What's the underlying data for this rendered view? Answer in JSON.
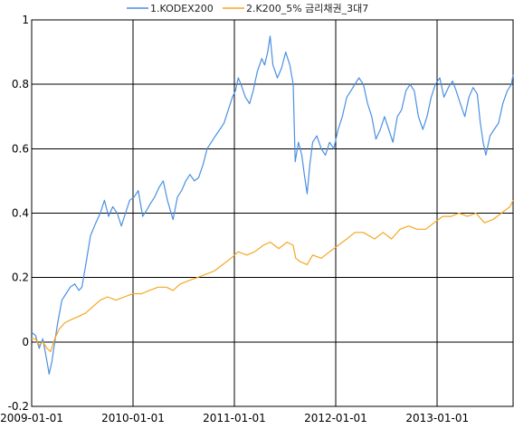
{
  "chart_data": {
    "type": "line",
    "title": "",
    "xlabel": "",
    "ylabel": "",
    "legend_position": "top-center",
    "grid": true,
    "x_ticks": [
      "2009-01-01",
      "2010-01-01",
      "2011-01-01",
      "2012-01-01",
      "2013-01-01"
    ],
    "y_ticks": [
      -0.2,
      0,
      0.2,
      0.4,
      0.6,
      0.8,
      1
    ],
    "y_tick_labels": [
      "-0.2",
      "0",
      "0.2",
      "0.4",
      "0.6",
      "0.8",
      "1"
    ],
    "xlim": [
      "2009-01-01",
      "2013-10-01"
    ],
    "ylim": [
      -0.2,
      1.0
    ],
    "series": [
      {
        "name": "1.KODEX200",
        "color": "#4a90e2",
        "points": [
          [
            "2009-01-01",
            0.03
          ],
          [
            "2009-01-15",
            0.02
          ],
          [
            "2009-01-28",
            -0.02
          ],
          [
            "2009-02-10",
            0.01
          ],
          [
            "2009-02-25",
            -0.06
          ],
          [
            "2009-03-05",
            -0.1
          ],
          [
            "2009-03-15",
            -0.06
          ],
          [
            "2009-03-25",
            0.0
          ],
          [
            "2009-04-05",
            0.06
          ],
          [
            "2009-04-20",
            0.13
          ],
          [
            "2009-05-05",
            0.15
          ],
          [
            "2009-05-20",
            0.17
          ],
          [
            "2009-06-05",
            0.18
          ],
          [
            "2009-06-20",
            0.16
          ],
          [
            "2009-07-01",
            0.17
          ],
          [
            "2009-07-15",
            0.24
          ],
          [
            "2009-08-01",
            0.33
          ],
          [
            "2009-08-20",
            0.37
          ],
          [
            "2009-09-05",
            0.4
          ],
          [
            "2009-09-20",
            0.44
          ],
          [
            "2009-10-05",
            0.39
          ],
          [
            "2009-10-20",
            0.42
          ],
          [
            "2009-11-05",
            0.4
          ],
          [
            "2009-11-20",
            0.36
          ],
          [
            "2009-12-05",
            0.4
          ],
          [
            "2009-12-20",
            0.44
          ],
          [
            "2010-01-05",
            0.45
          ],
          [
            "2010-01-20",
            0.47
          ],
          [
            "2010-02-05",
            0.39
          ],
          [
            "2010-02-20",
            0.41
          ],
          [
            "2010-03-05",
            0.43
          ],
          [
            "2010-03-20",
            0.45
          ],
          [
            "2010-04-05",
            0.48
          ],
          [
            "2010-04-20",
            0.5
          ],
          [
            "2010-05-05",
            0.44
          ],
          [
            "2010-05-25",
            0.38
          ],
          [
            "2010-06-10",
            0.45
          ],
          [
            "2010-06-25",
            0.47
          ],
          [
            "2010-07-10",
            0.5
          ],
          [
            "2010-07-25",
            0.52
          ],
          [
            "2010-08-10",
            0.5
          ],
          [
            "2010-08-25",
            0.51
          ],
          [
            "2010-09-10",
            0.55
          ],
          [
            "2010-09-25",
            0.6
          ],
          [
            "2010-10-10",
            0.62
          ],
          [
            "2010-10-25",
            0.64
          ],
          [
            "2010-11-10",
            0.66
          ],
          [
            "2010-11-25",
            0.68
          ],
          [
            "2010-12-10",
            0.72
          ],
          [
            "2010-12-25",
            0.76
          ],
          [
            "2011-01-05",
            0.78
          ],
          [
            "2011-01-15",
            0.82
          ],
          [
            "2011-01-25",
            0.8
          ],
          [
            "2011-02-10",
            0.76
          ],
          [
            "2011-02-25",
            0.74
          ],
          [
            "2011-03-10",
            0.78
          ],
          [
            "2011-03-25",
            0.84
          ],
          [
            "2011-04-10",
            0.88
          ],
          [
            "2011-04-20",
            0.86
          ],
          [
            "2011-05-01",
            0.9
          ],
          [
            "2011-05-10",
            0.95
          ],
          [
            "2011-05-20",
            0.86
          ],
          [
            "2011-06-05",
            0.82
          ],
          [
            "2011-06-20",
            0.85
          ],
          [
            "2011-07-05",
            0.9
          ],
          [
            "2011-07-20",
            0.86
          ],
          [
            "2011-08-01",
            0.8
          ],
          [
            "2011-08-08",
            0.56
          ],
          [
            "2011-08-20",
            0.62
          ],
          [
            "2011-09-01",
            0.58
          ],
          [
            "2011-09-10",
            0.52
          ],
          [
            "2011-09-20",
            0.46
          ],
          [
            "2011-09-30",
            0.55
          ],
          [
            "2011-10-10",
            0.62
          ],
          [
            "2011-10-25",
            0.64
          ],
          [
            "2011-11-10",
            0.6
          ],
          [
            "2011-11-25",
            0.58
          ],
          [
            "2011-12-10",
            0.62
          ],
          [
            "2011-12-25",
            0.6
          ],
          [
            "2012-01-10",
            0.66
          ],
          [
            "2012-01-25",
            0.7
          ],
          [
            "2012-02-10",
            0.76
          ],
          [
            "2012-02-25",
            0.78
          ],
          [
            "2012-03-10",
            0.8
          ],
          [
            "2012-03-25",
            0.82
          ],
          [
            "2012-04-10",
            0.8
          ],
          [
            "2012-04-25",
            0.74
          ],
          [
            "2012-05-10",
            0.7
          ],
          [
            "2012-05-25",
            0.63
          ],
          [
            "2012-06-10",
            0.66
          ],
          [
            "2012-06-25",
            0.7
          ],
          [
            "2012-07-10",
            0.66
          ],
          [
            "2012-07-25",
            0.62
          ],
          [
            "2012-08-10",
            0.7
          ],
          [
            "2012-08-25",
            0.72
          ],
          [
            "2012-09-10",
            0.78
          ],
          [
            "2012-09-25",
            0.8
          ],
          [
            "2012-10-10",
            0.78
          ],
          [
            "2012-10-25",
            0.7
          ],
          [
            "2012-11-10",
            0.66
          ],
          [
            "2012-11-25",
            0.7
          ],
          [
            "2012-12-10",
            0.76
          ],
          [
            "2012-12-25",
            0.8
          ],
          [
            "2013-01-10",
            0.82
          ],
          [
            "2013-01-25",
            0.76
          ],
          [
            "2013-02-10",
            0.79
          ],
          [
            "2013-02-25",
            0.81
          ],
          [
            "2013-03-10",
            0.78
          ],
          [
            "2013-03-25",
            0.74
          ],
          [
            "2013-04-10",
            0.7
          ],
          [
            "2013-04-25",
            0.76
          ],
          [
            "2013-05-10",
            0.79
          ],
          [
            "2013-05-25",
            0.77
          ],
          [
            "2013-06-05",
            0.68
          ],
          [
            "2013-06-15",
            0.62
          ],
          [
            "2013-06-25",
            0.58
          ],
          [
            "2013-07-10",
            0.64
          ],
          [
            "2013-07-25",
            0.66
          ],
          [
            "2013-08-10",
            0.68
          ],
          [
            "2013-08-25",
            0.74
          ],
          [
            "2013-09-10",
            0.78
          ],
          [
            "2013-09-25",
            0.8
          ],
          [
            "2013-10-01",
            0.83
          ]
        ]
      },
      {
        "name": "2.K200_5% 금리채권_3대7",
        "color": "#f5a623",
        "points": [
          [
            "2009-01-01",
            0.01
          ],
          [
            "2009-01-15",
            0.01
          ],
          [
            "2009-01-28",
            -0.01
          ],
          [
            "2009-02-10",
            0.0
          ],
          [
            "2009-02-25",
            -0.02
          ],
          [
            "2009-03-10",
            -0.03
          ],
          [
            "2009-03-25",
            0.01
          ],
          [
            "2009-04-10",
            0.04
          ],
          [
            "2009-05-01",
            0.06
          ],
          [
            "2009-05-25",
            0.07
          ],
          [
            "2009-06-20",
            0.08
          ],
          [
            "2009-07-15",
            0.09
          ],
          [
            "2009-08-10",
            0.11
          ],
          [
            "2009-09-05",
            0.13
          ],
          [
            "2009-10-01",
            0.14
          ],
          [
            "2009-11-01",
            0.13
          ],
          [
            "2009-12-01",
            0.14
          ],
          [
            "2010-01-01",
            0.15
          ],
          [
            "2010-02-01",
            0.15
          ],
          [
            "2010-03-01",
            0.16
          ],
          [
            "2010-04-01",
            0.17
          ],
          [
            "2010-05-01",
            0.17
          ],
          [
            "2010-05-25",
            0.16
          ],
          [
            "2010-06-20",
            0.18
          ],
          [
            "2010-07-20",
            0.19
          ],
          [
            "2010-08-20",
            0.2
          ],
          [
            "2010-09-20",
            0.21
          ],
          [
            "2010-10-20",
            0.22
          ],
          [
            "2010-11-20",
            0.24
          ],
          [
            "2010-12-20",
            0.26
          ],
          [
            "2011-01-15",
            0.28
          ],
          [
            "2011-02-15",
            0.27
          ],
          [
            "2011-03-15",
            0.28
          ],
          [
            "2011-04-15",
            0.3
          ],
          [
            "2011-05-10",
            0.31
          ],
          [
            "2011-06-10",
            0.29
          ],
          [
            "2011-07-10",
            0.31
          ],
          [
            "2011-08-01",
            0.3
          ],
          [
            "2011-08-10",
            0.26
          ],
          [
            "2011-08-25",
            0.25
          ],
          [
            "2011-09-20",
            0.24
          ],
          [
            "2011-10-10",
            0.27
          ],
          [
            "2011-11-10",
            0.26
          ],
          [
            "2011-12-10",
            0.28
          ],
          [
            "2012-01-10",
            0.3
          ],
          [
            "2012-02-10",
            0.32
          ],
          [
            "2012-03-10",
            0.34
          ],
          [
            "2012-04-10",
            0.34
          ],
          [
            "2012-05-20",
            0.32
          ],
          [
            "2012-06-20",
            0.34
          ],
          [
            "2012-07-20",
            0.32
          ],
          [
            "2012-08-20",
            0.35
          ],
          [
            "2012-09-20",
            0.36
          ],
          [
            "2012-10-20",
            0.35
          ],
          [
            "2012-11-20",
            0.35
          ],
          [
            "2012-12-20",
            0.37
          ],
          [
            "2013-01-20",
            0.39
          ],
          [
            "2013-02-20",
            0.39
          ],
          [
            "2013-03-20",
            0.4
          ],
          [
            "2013-04-20",
            0.39
          ],
          [
            "2013-05-20",
            0.4
          ],
          [
            "2013-06-20",
            0.37
          ],
          [
            "2013-07-20",
            0.38
          ],
          [
            "2013-08-20",
            0.4
          ],
          [
            "2013-09-20",
            0.42
          ],
          [
            "2013-10-01",
            0.44
          ]
        ]
      }
    ]
  }
}
